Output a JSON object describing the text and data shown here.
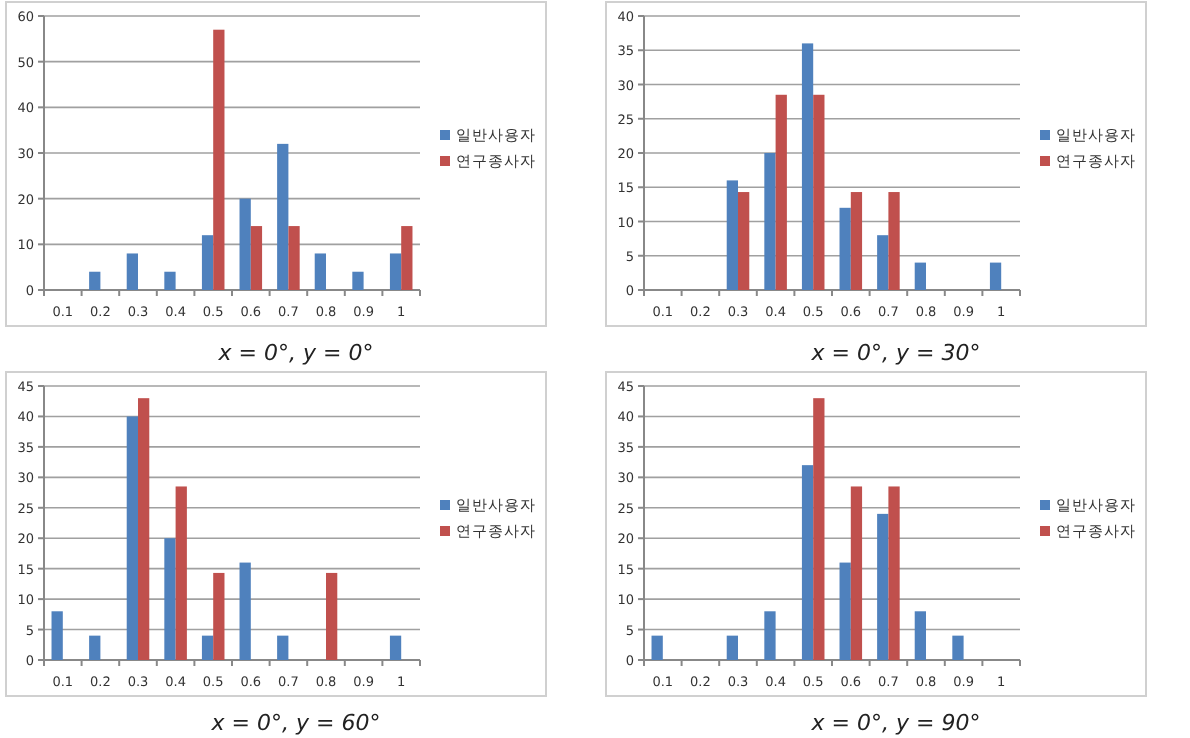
{
  "chart_data": [
    {
      "type": "bar",
      "xlabel": "x = 0°, y = 0°",
      "categories": [
        "0.1",
        "0.2",
        "0.3",
        "0.4",
        "0.5",
        "0.6",
        "0.7",
        "0.8",
        "0.9",
        "1"
      ],
      "ylim": [
        0,
        60
      ],
      "yticks": [
        0,
        10,
        20,
        30,
        40,
        50,
        60
      ],
      "grid": "y",
      "legend": "right",
      "series": [
        {
          "name": "일반사용자",
          "color": "#4f81bd",
          "values": [
            0,
            4,
            8,
            4,
            12,
            20,
            32,
            8,
            4,
            8
          ]
        },
        {
          "name": "연구종사자",
          "color": "#c0504d",
          "values": [
            0,
            0,
            0,
            0,
            57,
            14,
            14,
            0,
            0,
            14
          ]
        }
      ]
    },
    {
      "type": "bar",
      "xlabel": "x = 0°, y = 30°",
      "categories": [
        "0.1",
        "0.2",
        "0.3",
        "0.4",
        "0.5",
        "0.6",
        "0.7",
        "0.8",
        "0.9",
        "1"
      ],
      "ylim": [
        0,
        40
      ],
      "yticks": [
        0,
        5,
        10,
        15,
        20,
        25,
        30,
        35,
        40
      ],
      "grid": "y",
      "legend": "right",
      "series": [
        {
          "name": "일반사용자",
          "color": "#4f81bd",
          "values": [
            0,
            0,
            16,
            20,
            36,
            12,
            8,
            4,
            0,
            4
          ]
        },
        {
          "name": "연구종사자",
          "color": "#c0504d",
          "values": [
            0,
            0,
            14.3,
            28.5,
            28.5,
            14.3,
            14.3,
            0,
            0,
            0
          ]
        }
      ]
    },
    {
      "type": "bar",
      "xlabel": "x = 0°, y = 60°",
      "categories": [
        "0.1",
        "0.2",
        "0.3",
        "0.4",
        "0.5",
        "0.6",
        "0.7",
        "0.8",
        "0.9",
        "1"
      ],
      "ylim": [
        0,
        45
      ],
      "yticks": [
        0,
        5,
        10,
        15,
        20,
        25,
        30,
        35,
        40,
        45
      ],
      "grid": "y",
      "legend": "right",
      "series": [
        {
          "name": "일반사용자",
          "color": "#4f81bd",
          "values": [
            8,
            4,
            40,
            20,
            4,
            16,
            4,
            0,
            0,
            4
          ]
        },
        {
          "name": "연구종사자",
          "color": "#c0504d",
          "values": [
            0,
            0,
            43,
            28.5,
            14.3,
            0,
            0,
            14.3,
            0,
            0
          ]
        }
      ]
    },
    {
      "type": "bar",
      "xlabel": "x = 0°, y = 90°",
      "categories": [
        "0.1",
        "0.2",
        "0.3",
        "0.4",
        "0.5",
        "0.6",
        "0.7",
        "0.8",
        "0.9",
        "1"
      ],
      "ylim": [
        0,
        45
      ],
      "yticks": [
        0,
        5,
        10,
        15,
        20,
        25,
        30,
        35,
        40,
        45
      ],
      "grid": "y",
      "legend": "right",
      "series": [
        {
          "name": "일반사용자",
          "color": "#4f81bd",
          "values": [
            4,
            0,
            4,
            8,
            32,
            16,
            24,
            8,
            4,
            0
          ]
        },
        {
          "name": "연구종사자",
          "color": "#c0504d",
          "values": [
            0,
            0,
            0,
            0,
            43,
            28.5,
            28.5,
            0,
            0,
            0
          ]
        }
      ]
    }
  ]
}
